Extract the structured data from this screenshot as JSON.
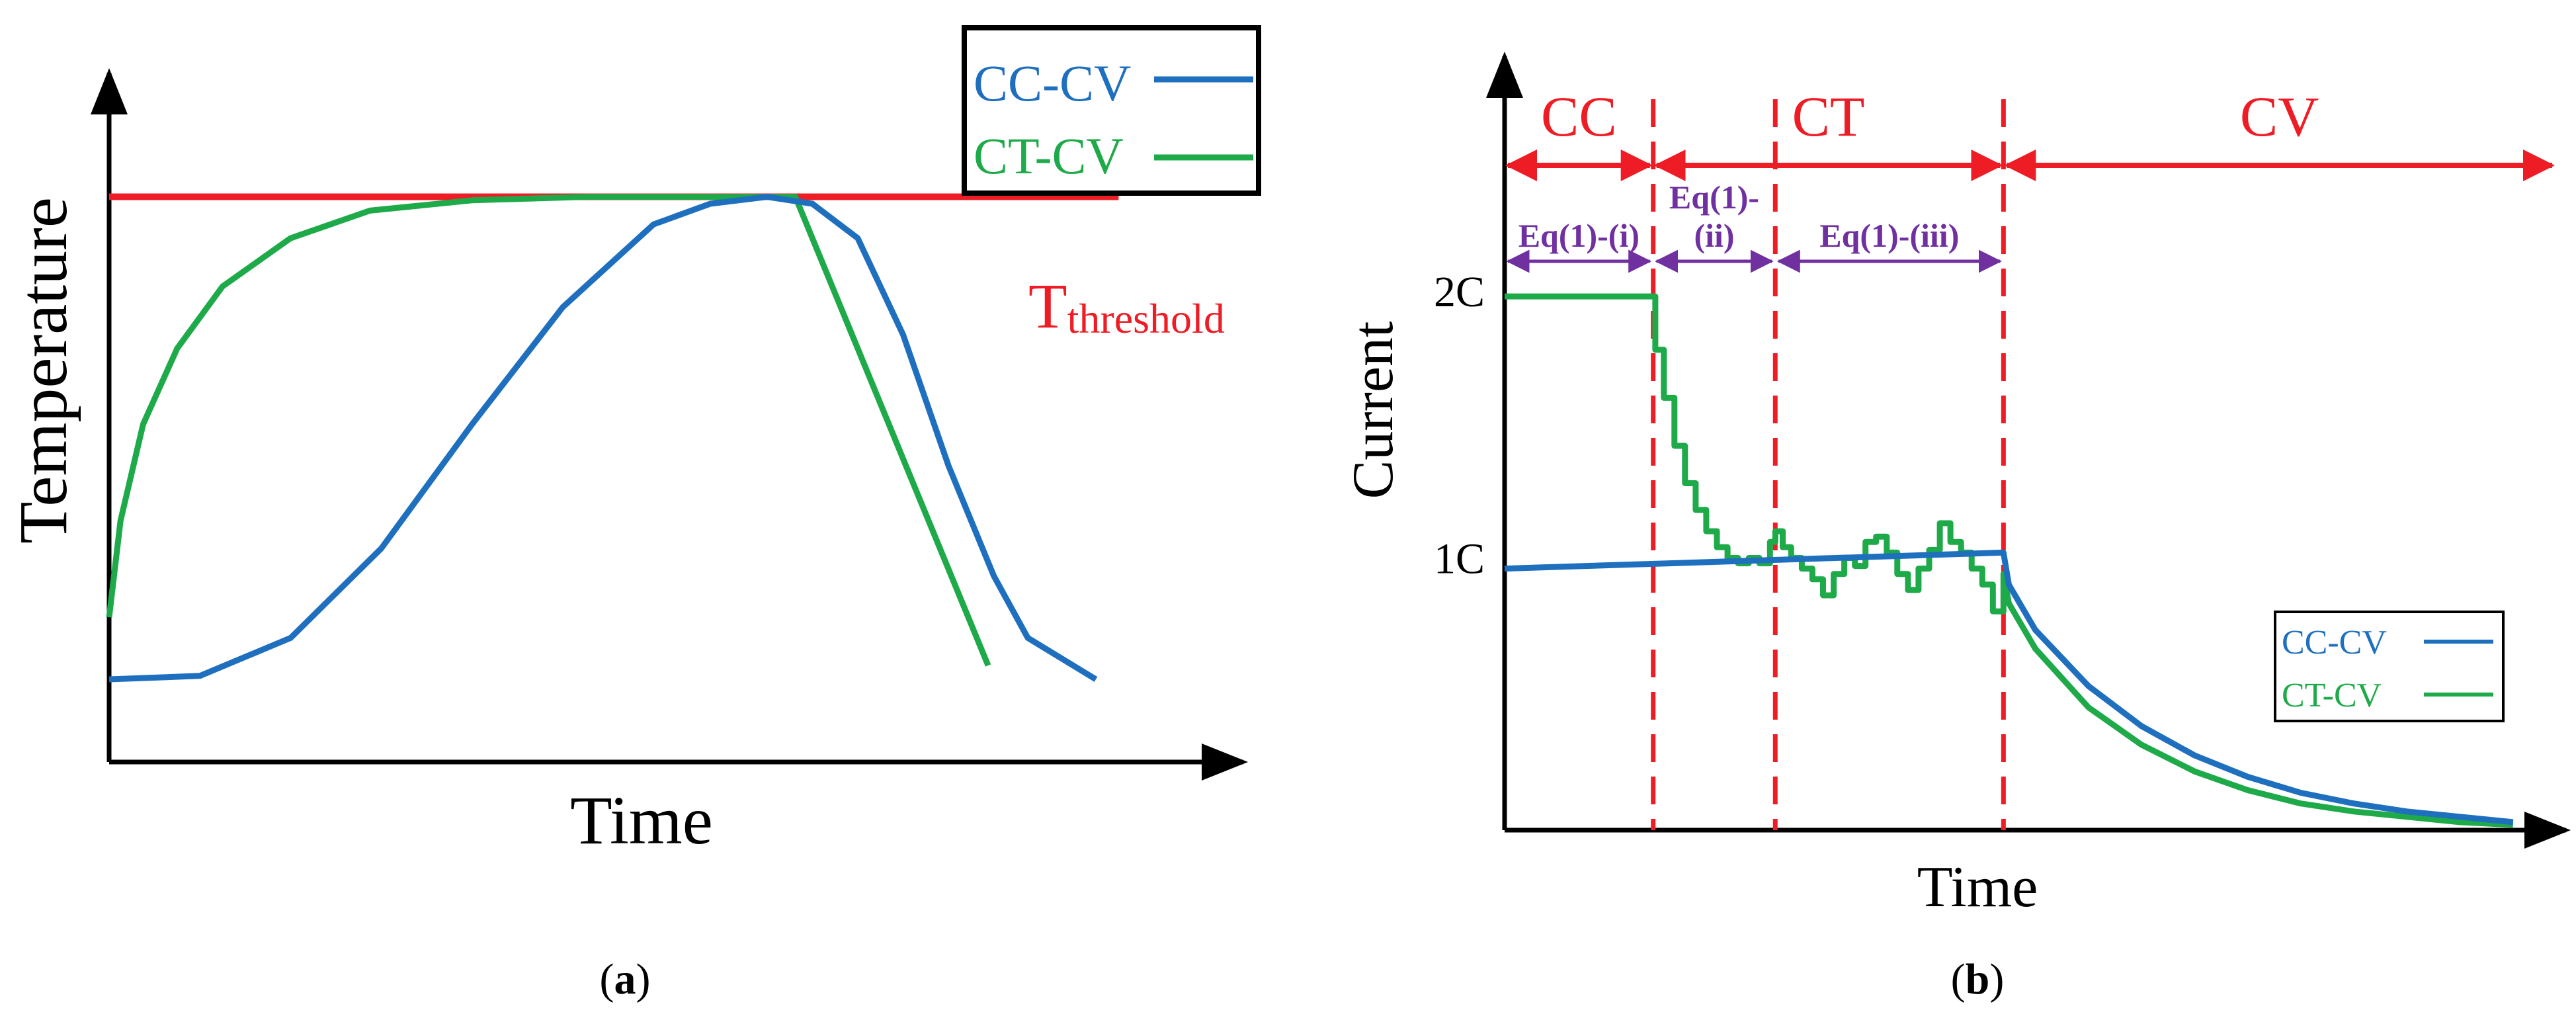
{
  "colors": {
    "blue": "#1f6fbf",
    "green": "#1faa4a",
    "red": "#ee1c24",
    "purple": "#7030a0",
    "axis": "#000000"
  },
  "panel_a": {
    "caption_open": "(",
    "caption_letter": "a",
    "caption_close": ")"
  },
  "panel_b": {
    "caption_open": "(",
    "caption_letter": "b",
    "caption_close": ")"
  },
  "chart_data": [
    {
      "type": "line",
      "panel": "a",
      "title": "",
      "xlabel": "Time",
      "ylabel": "Temperature",
      "xlim": [
        0,
        10
      ],
      "ylim": [
        0,
        10
      ],
      "legend": {
        "placement": "top-right",
        "entries": [
          {
            "label": "CC-CV",
            "color": "#1f6fbf"
          },
          {
            "label": "CT-CV",
            "color": "#1faa4a"
          }
        ]
      },
      "threshold": {
        "label_main": "T",
        "label_sub": "threshold",
        "value": 8.2,
        "x_end": 8.9
      },
      "series": [
        {
          "name": "CC-CV",
          "x": [
            0,
            0.8,
            1.6,
            2.4,
            3.2,
            4.0,
            4.8,
            5.3,
            5.8,
            6.2,
            6.6,
            7.0,
            7.4,
            7.8,
            8.1,
            8.7
          ],
          "y": [
            1.2,
            1.25,
            1.8,
            3.1,
            4.9,
            6.6,
            7.8,
            8.1,
            8.2,
            8.1,
            7.6,
            6.2,
            4.3,
            2.7,
            1.8,
            1.2
          ]
        },
        {
          "name": "CT-CV",
          "x": [
            0,
            0.1,
            0.3,
            0.6,
            1.0,
            1.6,
            2.3,
            3.2,
            4.2,
            5.2,
            5.8,
            6.05,
            7.75
          ],
          "y": [
            2.1,
            3.5,
            4.9,
            6.0,
            6.9,
            7.6,
            8.0,
            8.15,
            8.2,
            8.2,
            8.2,
            8.2,
            1.4
          ]
        }
      ]
    },
    {
      "type": "line",
      "panel": "b",
      "title": "",
      "xlabel": "Time",
      "ylabel": "Current",
      "xlim": [
        0,
        10
      ],
      "ylim": [
        0,
        2.9
      ],
      "yticks": [
        {
          "value": 1,
          "label": "1C"
        },
        {
          "value": 2,
          "label": "2C"
        }
      ],
      "legend": {
        "placement": "bottom-right",
        "entries": [
          {
            "label": "CC-CV",
            "color": "#1f6fbf"
          },
          {
            "label": "CT-CV",
            "color": "#1faa4a"
          }
        ]
      },
      "phases": {
        "boundaries": [
          1.4,
          2.55,
          4.7
        ],
        "arrow_end": 9.9,
        "labels": [
          {
            "text": "CC",
            "from": 0,
            "to": 1.4
          },
          {
            "text": "CT",
            "from": 1.4,
            "to": 4.7
          },
          {
            "text": "CV",
            "from": 4.7,
            "to": 9.9
          }
        ],
        "equations": [
          {
            "text": "Eq(1)-(i)",
            "from": 0,
            "to": 1.4
          },
          {
            "text_line1": "Eq(1)-",
            "text_line2": "(ii)",
            "from": 1.4,
            "to": 2.55
          },
          {
            "text": "Eq(1)-(iii)",
            "from": 2.55,
            "to": 4.7
          }
        ]
      },
      "series": [
        {
          "name": "CC-CV",
          "x": [
            0,
            4.7,
            4.75,
            5.0,
            5.5,
            6.0,
            6.5,
            7.0,
            7.5,
            8.0,
            8.5,
            9.0,
            9.5
          ],
          "y": [
            0.98,
            1.04,
            0.92,
            0.75,
            0.54,
            0.39,
            0.28,
            0.2,
            0.14,
            0.1,
            0.07,
            0.05,
            0.03
          ]
        },
        {
          "name": "CT-CV",
          "x": [
            0,
            1.4,
            1.42,
            1.5,
            1.6,
            1.7,
            1.8,
            1.9,
            2.0,
            2.1,
            2.2,
            2.3,
            2.4,
            2.5,
            2.55,
            2.62,
            2.7,
            2.8,
            2.9,
            3.0,
            3.1,
            3.2,
            3.3,
            3.4,
            3.5,
            3.6,
            3.7,
            3.8,
            3.9,
            4.0,
            4.1,
            4.2,
            4.3,
            4.4,
            4.5,
            4.6,
            4.7,
            4.75,
            5.0,
            5.5,
            6.0,
            6.5,
            7.0,
            7.5,
            8.0,
            8.5,
            9.0,
            9.5
          ],
          "y": [
            2.0,
            2.0,
            1.8,
            1.62,
            1.44,
            1.3,
            1.2,
            1.12,
            1.06,
            1.02,
            1.0,
            1.02,
            1.0,
            1.08,
            1.12,
            1.06,
            1.02,
            0.98,
            0.94,
            0.88,
            0.96,
            1.02,
            0.99,
            1.08,
            1.1,
            1.04,
            0.96,
            0.9,
            0.98,
            1.05,
            1.15,
            1.08,
            1.04,
            0.98,
            0.92,
            0.82,
            0.96,
            0.85,
            0.68,
            0.46,
            0.32,
            0.22,
            0.15,
            0.1,
            0.07,
            0.05,
            0.03,
            0.02
          ]
        }
      ]
    }
  ]
}
